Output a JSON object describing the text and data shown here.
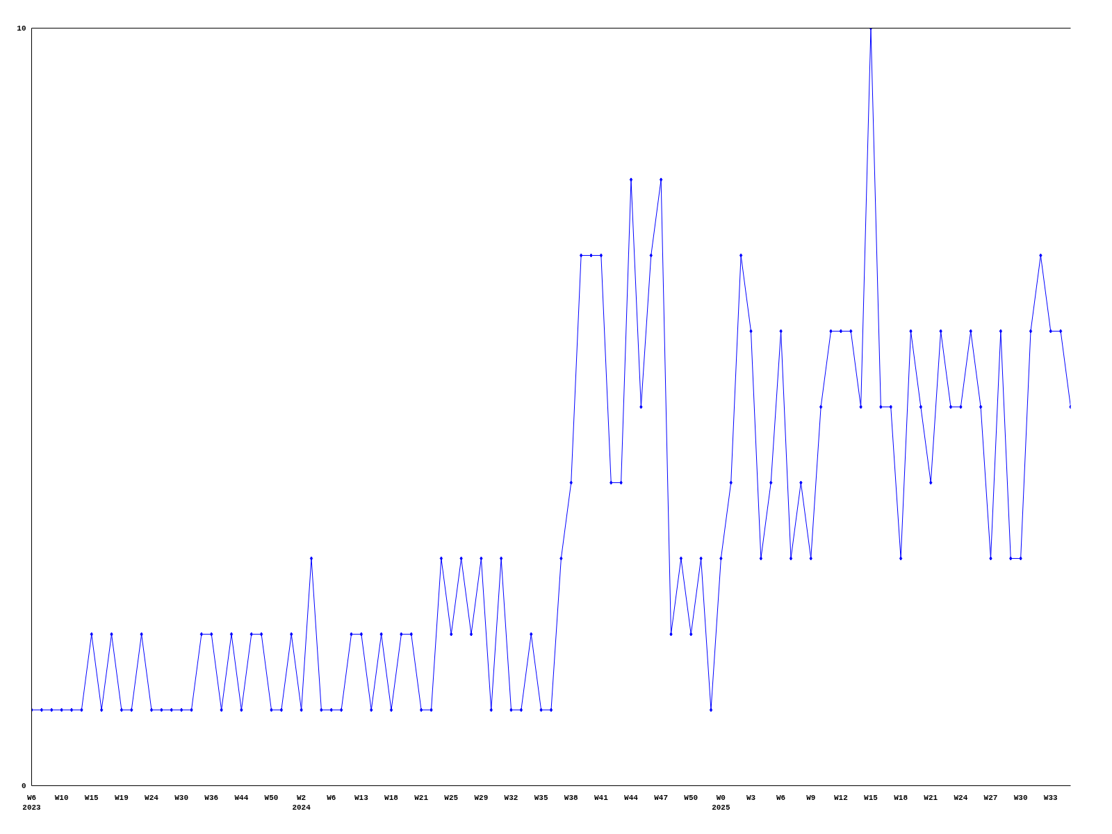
{
  "chart_data": {
    "type": "line",
    "color": "#0000ff",
    "marker": "diamond",
    "grid": false,
    "ylim": [
      0,
      10
    ],
    "yticks": [
      0,
      10
    ],
    "categories": [
      "W6\n2023",
      null,
      null,
      "W10",
      null,
      null,
      "W15",
      null,
      null,
      "W19",
      null,
      null,
      "W24",
      null,
      null,
      "W30",
      null,
      null,
      "W36",
      null,
      null,
      "W44",
      null,
      null,
      "W50",
      null,
      null,
      "W2\n2024",
      null,
      null,
      "W6",
      null,
      null,
      "W13",
      null,
      null,
      "W18",
      null,
      null,
      "W21",
      null,
      null,
      "W25",
      null,
      null,
      "W29",
      null,
      null,
      "W32",
      null,
      null,
      "W35",
      null,
      null,
      "W38",
      null,
      null,
      "W41",
      null,
      null,
      "W44",
      null,
      null,
      "W47",
      null,
      null,
      "W50",
      null,
      null,
      "W0\n2025",
      null,
      null,
      "W3",
      null,
      null,
      "W6",
      null,
      null,
      "W9",
      null,
      null,
      "W12",
      null,
      null,
      "W15",
      null,
      null,
      "W18",
      null,
      null,
      "W21",
      null,
      null,
      "W24",
      null,
      null,
      "W27",
      null,
      null,
      "W30",
      null,
      null,
      "W33",
      null,
      null
    ],
    "values": [
      1,
      1,
      1,
      1,
      1,
      1,
      2,
      1,
      2,
      1,
      1,
      2,
      1,
      1,
      1,
      1,
      1,
      2,
      2,
      1,
      2,
      1,
      2,
      2,
      1,
      1,
      2,
      1,
      3,
      1,
      1,
      1,
      2,
      2,
      1,
      2,
      1,
      2,
      2,
      1,
      1,
      3,
      2,
      3,
      2,
      3,
      1,
      3,
      1,
      1,
      2,
      1,
      1,
      3,
      4,
      7,
      7,
      7,
      4,
      4,
      8,
      5,
      7,
      8,
      2,
      3,
      2,
      3,
      1,
      3,
      4,
      7,
      6,
      3,
      4,
      6,
      3,
      4,
      3,
      5,
      6,
      6,
      6,
      5,
      10,
      5,
      5,
      3,
      6,
      5,
      4,
      6,
      5,
      5,
      6,
      5,
      3,
      6,
      3,
      3,
      6,
      7,
      6,
      6,
      5
    ]
  }
}
